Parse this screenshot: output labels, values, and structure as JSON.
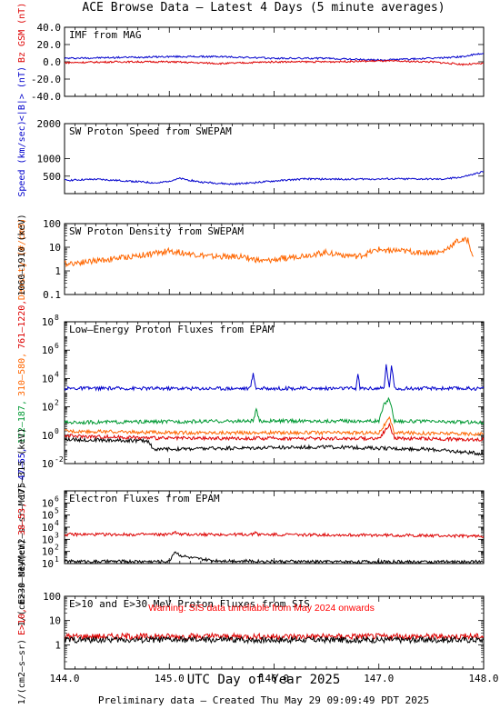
{
  "header": {
    "title": "ACE Browse Data – Latest 4 Days (5 minute averages)",
    "xlabel": "UTC Day of Year 2025",
    "footer": "Preliminary data – Created Thu May 29 09:09:49 PDT 2025"
  },
  "colors": {
    "blue": "#0000cc",
    "red": "#dd0000",
    "orange": "#ff6600",
    "green": "#009933",
    "black": "#000000",
    "warning": "#ff0000"
  },
  "chart_data": [
    {
      "type": "line",
      "title": "IMF from MAG",
      "ylim": [
        -40,
        40
      ],
      "yscale": "linear",
      "yticks": [
        "40.0",
        "20.0",
        "0.0",
        "-20.0",
        "-40.0"
      ],
      "ylabel_lines": [
        {
          "text": "<|B|> (nT)",
          "color": "blue"
        },
        {
          "text": "Bz GSM (nT)",
          "color": "red"
        }
      ],
      "xlim": [
        144.0,
        148.0
      ],
      "series": [
        {
          "name": "<|B|>",
          "color": "blue",
          "x": [
            144.0,
            144.5,
            145.0,
            145.5,
            146.0,
            146.5,
            147.0,
            147.5,
            147.8,
            148.0
          ],
          "y": [
            4,
            5,
            6,
            6,
            4,
            4,
            2,
            4,
            6,
            10
          ]
        },
        {
          "name": "Bz GSM",
          "color": "red",
          "x": [
            144.0,
            144.5,
            145.0,
            145.5,
            146.0,
            146.5,
            147.0,
            147.5,
            147.8,
            148.0
          ],
          "y": [
            -1,
            0,
            0,
            -2,
            0,
            0,
            1,
            0,
            -3,
            -2
          ]
        }
      ]
    },
    {
      "type": "line",
      "title": "SW Proton Speed from SWEPAM",
      "ylim": [
        0,
        2000
      ],
      "yscale": "linear",
      "yticks": [
        "2000",
        "1000",
        "500"
      ],
      "ylabel_lines": [
        {
          "text": "Speed (km/sec)",
          "color": "blue"
        }
      ],
      "xlim": [
        144.0,
        148.0
      ],
      "series": [
        {
          "name": "Speed",
          "color": "blue",
          "x": [
            144.0,
            144.3,
            144.6,
            144.9,
            145.1,
            145.3,
            145.6,
            145.8,
            146.0,
            146.3,
            146.6,
            147.0,
            147.3,
            147.6,
            147.8,
            147.9,
            148.0
          ],
          "y": [
            380,
            410,
            360,
            300,
            430,
            330,
            270,
            310,
            360,
            420,
            410,
            420,
            420,
            410,
            480,
            550,
            630
          ]
        }
      ]
    },
    {
      "type": "line",
      "title": "SW Proton Density from SWEPAM",
      "ylim": [
        0.1,
        100
      ],
      "yscale": "log",
      "yticks": [
        "100",
        "10",
        "1",
        "0.1"
      ],
      "ylabel_lines": [
        {
          "text": "Density (#/cm3)",
          "color": "orange"
        }
      ],
      "xlim": [
        144.0,
        148.0
      ],
      "series": [
        {
          "name": "Density",
          "color": "orange",
          "x": [
            144.0,
            144.4,
            144.8,
            145.0,
            145.4,
            145.7,
            145.9,
            146.2,
            146.5,
            146.8,
            147.0,
            147.4,
            147.6,
            147.75,
            147.85,
            147.9
          ],
          "y": [
            2,
            3,
            5,
            7,
            4,
            4,
            2.5,
            4,
            6,
            4,
            8,
            6,
            6,
            18,
            20,
            4
          ]
        }
      ]
    },
    {
      "type": "line",
      "title": "Low–Energy Proton Fluxes from EPAM",
      "ylim": [
        0.01,
        100000000
      ],
      "yscale": "log",
      "ytick_exponents": [
        -2,
        0,
        2,
        4,
        6,
        8
      ],
      "ylabel_lines": [
        {
          "text": "1/(cm2–s–sr–MeV)",
          "color": "black"
        },
        {
          "text": "47–65,",
          "color": "blue"
        },
        {
          "text": "112–187,",
          "color": "green"
        },
        {
          "text": "310–580,",
          "color": "orange"
        },
        {
          "text": "761–1220,",
          "color": "red"
        },
        {
          "text": "1060–1910 (keV)",
          "color": "black"
        }
      ],
      "xlim": [
        144.0,
        148.0
      ],
      "series": [
        {
          "name": "47–65",
          "color": "blue",
          "x": [
            144.0,
            145.77,
            145.8,
            145.83,
            146.78,
            146.8,
            146.82,
            147.05,
            147.07,
            147.1,
            147.12,
            147.15,
            148.0
          ],
          "y": [
            2000,
            2000,
            20000,
            2000,
            2000,
            20000,
            2000,
            2000,
            100000,
            2000,
            100000,
            2000,
            2000
          ]
        },
        {
          "name": "112–187",
          "color": "green",
          "x": [
            144.0,
            145.8,
            145.83,
            145.86,
            147.0,
            147.05,
            147.1,
            147.15,
            148.0
          ],
          "y": [
            8,
            10,
            60,
            10,
            10,
            150,
            400,
            10,
            8
          ]
        },
        {
          "name": "310–580",
          "color": "orange",
          "x": [
            144.0,
            145.0,
            146.0,
            147.0,
            147.1,
            147.15,
            148.0
          ],
          "y": [
            2,
            1.5,
            1.5,
            1.5,
            15,
            1.5,
            1.2
          ]
        },
        {
          "name": "761–1220",
          "color": "red",
          "x": [
            144.0,
            145.0,
            146.0,
            147.0,
            147.1,
            147.15,
            148.0
          ],
          "y": [
            0.9,
            0.6,
            0.6,
            0.6,
            5,
            0.6,
            0.5
          ]
        },
        {
          "name": "1060–1910",
          "color": "black",
          "x": [
            144.0,
            144.8,
            144.85,
            145.5,
            146.5,
            147.5,
            148.0
          ],
          "y": [
            0.5,
            0.4,
            0.1,
            0.12,
            0.15,
            0.1,
            0.05
          ]
        }
      ]
    },
    {
      "type": "line",
      "title": "Electron Fluxes from EPAM",
      "ylim": [
        10,
        10000000
      ],
      "yscale": "log",
      "ytick_exponents": [
        1,
        2,
        3,
        4,
        5,
        6
      ],
      "ylabel_lines": [
        {
          "text": "1/(cm2–s–sr–MeV)",
          "color": "black"
        },
        {
          "text": "38–53,",
          "color": "red"
        },
        {
          "text": "175–315 (keV)",
          "color": "black"
        }
      ],
      "xlim": [
        144.0,
        148.0
      ],
      "series": [
        {
          "name": "38–53",
          "color": "red",
          "x": [
            144.0,
            145.0,
            145.05,
            145.1,
            145.8,
            145.82,
            145.85,
            147.0,
            148.0
          ],
          "y": [
            2500,
            2500,
            4000,
            2500,
            2500,
            4500,
            2500,
            2200,
            1800
          ]
        },
        {
          "name": "175–315",
          "color": "black",
          "x": [
            144.0,
            145.0,
            145.05,
            145.1,
            145.2,
            145.4,
            146.0,
            147.0,
            148.0
          ],
          "y": [
            15,
            15,
            100,
            50,
            30,
            18,
            15,
            14,
            14
          ]
        }
      ]
    },
    {
      "type": "line",
      "title": "E>10 and E>30 MeV Proton Fluxes from SIS",
      "ylim": [
        0.1,
        100
      ],
      "yscale": "log",
      "yticks": [
        "100",
        "10",
        "1"
      ],
      "ylabel_lines": [
        {
          "text": "1/(cm2–s–sr)",
          "color": "black"
        },
        {
          "text": "E>10,",
          "color": "red"
        },
        {
          "text": "E>30 MeV",
          "color": "black"
        }
      ],
      "annotation": "Warning: SIS data unreliable from May 2024 onwards",
      "xlim": [
        144.0,
        148.0
      ],
      "xticks": [
        "144.0",
        "145.0",
        "146.0",
        "147.0",
        "148.0"
      ],
      "series": [
        {
          "name": "E>10",
          "color": "red",
          "x": [
            144.0,
            145.0,
            146.0,
            147.0,
            148.0
          ],
          "y": [
            2.2,
            2.2,
            2.2,
            2.2,
            2.2
          ]
        },
        {
          "name": "E>30",
          "color": "black",
          "x": [
            144.0,
            145.0,
            146.0,
            147.0,
            148.0
          ],
          "y": [
            1.6,
            1.6,
            1.6,
            1.6,
            1.6
          ]
        }
      ]
    }
  ]
}
